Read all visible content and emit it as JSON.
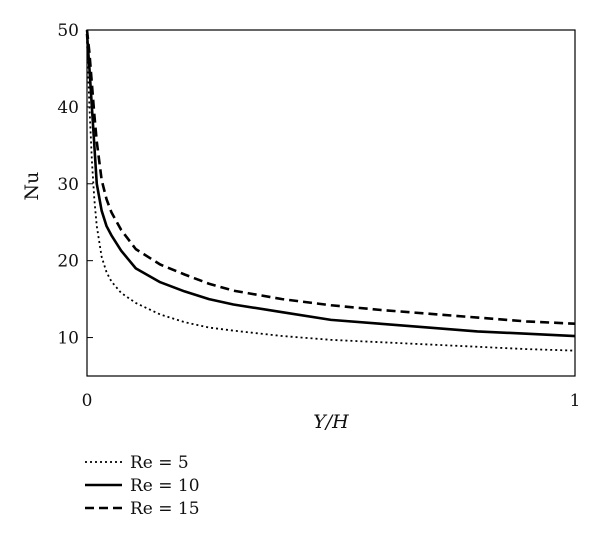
{
  "chart_data": {
    "type": "line",
    "title": "",
    "xlabel": "Y/H",
    "ylabel": "Nu",
    "xlim": [
      0,
      1
    ],
    "ylim": [
      5,
      50
    ],
    "x_ticks": [
      {
        "value": 0,
        "label": "0"
      },
      {
        "value": 1,
        "label": "1"
      }
    ],
    "y_ticks": [
      {
        "value": 10,
        "label": "10"
      },
      {
        "value": 20,
        "label": "20"
      },
      {
        "value": 30,
        "label": "30"
      },
      {
        "value": 40,
        "label": "40"
      },
      {
        "value": 50,
        "label": "50"
      }
    ],
    "grid": false,
    "legend_position": "bottom-left, below plot",
    "series": [
      {
        "name": "Re = 5",
        "style": "dotted",
        "color": "#000000",
        "x": [
          0.0,
          0.005,
          0.01,
          0.015,
          0.02,
          0.03,
          0.04,
          0.05,
          0.07,
          0.1,
          0.15,
          0.2,
          0.25,
          0.3,
          0.4,
          0.5,
          0.6,
          0.7,
          0.8,
          0.9,
          1.0
        ],
        "y": [
          48.5,
          40.0,
          33.0,
          28.0,
          24.5,
          20.5,
          18.5,
          17.3,
          15.8,
          14.5,
          13.0,
          12.0,
          11.3,
          10.9,
          10.2,
          9.7,
          9.4,
          9.1,
          8.8,
          8.5,
          8.3
        ]
      },
      {
        "name": "Re = 10",
        "style": "solid",
        "color": "#000000",
        "x": [
          0.0,
          0.005,
          0.01,
          0.015,
          0.02,
          0.03,
          0.04,
          0.05,
          0.07,
          0.1,
          0.15,
          0.2,
          0.25,
          0.3,
          0.4,
          0.5,
          0.6,
          0.7,
          0.8,
          0.9,
          1.0
        ],
        "y": [
          49.5,
          45.0,
          40.0,
          35.0,
          30.0,
          26.5,
          24.5,
          23.3,
          21.3,
          19.0,
          17.2,
          16.0,
          15.0,
          14.3,
          13.3,
          12.3,
          11.8,
          11.3,
          10.8,
          10.5,
          10.2
        ]
      },
      {
        "name": "Re = 15",
        "style": "dashed",
        "color": "#000000",
        "x": [
          0.0,
          0.005,
          0.01,
          0.015,
          0.02,
          0.03,
          0.04,
          0.05,
          0.07,
          0.1,
          0.15,
          0.2,
          0.25,
          0.3,
          0.4,
          0.5,
          0.6,
          0.7,
          0.8,
          0.9,
          1.0
        ],
        "y": [
          50.0,
          47.0,
          43.0,
          39.0,
          35.5,
          30.5,
          28.0,
          26.3,
          24.0,
          21.5,
          19.5,
          18.2,
          17.0,
          16.1,
          15.0,
          14.2,
          13.6,
          13.1,
          12.6,
          12.1,
          11.8
        ]
      }
    ]
  }
}
